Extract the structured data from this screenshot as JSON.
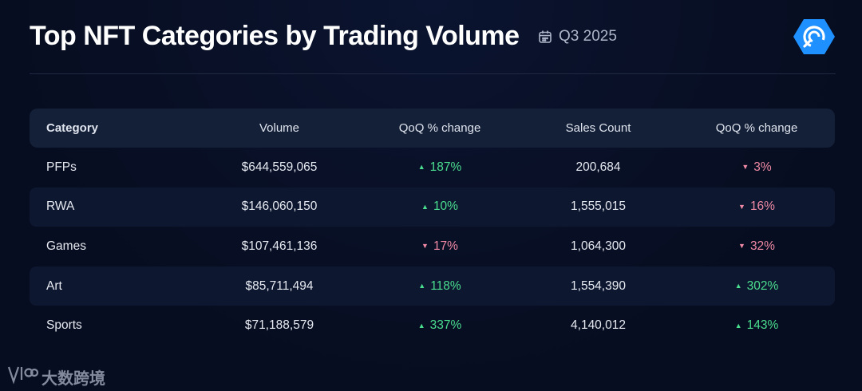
{
  "header": {
    "title": "Top NFT Categories by Trading Volume",
    "period": "Q3 2025"
  },
  "watermark": {
    "text": "大数跨境"
  },
  "colors": {
    "up": "#4ade8f",
    "down": "#f08aa4",
    "logo": "#1e90ff"
  },
  "chart_data": {
    "type": "table",
    "title": "Top NFT Categories by Trading Volume",
    "period": "Q3 2025",
    "columns": [
      "Category",
      "Volume",
      "QoQ % change",
      "Sales Count",
      "QoQ % change"
    ],
    "rows": [
      {
        "category": "PFPs",
        "volume": "$644,559,065",
        "volume_qoq": "187%",
        "volume_dir": "up",
        "sales": "200,684",
        "sales_qoq": "3%",
        "sales_dir": "down"
      },
      {
        "category": "RWA",
        "volume": "$146,060,150",
        "volume_qoq": "10%",
        "volume_dir": "up",
        "sales": "1,555,015",
        "sales_qoq": "16%",
        "sales_dir": "down"
      },
      {
        "category": "Games",
        "volume": "$107,461,136",
        "volume_qoq": "17%",
        "volume_dir": "down",
        "sales": "1,064,300",
        "sales_qoq": "32%",
        "sales_dir": "down"
      },
      {
        "category": "Art",
        "volume": "$85,711,494",
        "volume_qoq": "118%",
        "volume_dir": "up",
        "sales": "1,554,390",
        "sales_qoq": "302%",
        "sales_dir": "up"
      },
      {
        "category": "Sports",
        "volume": "$71,188,579",
        "volume_qoq": "337%",
        "volume_dir": "up",
        "sales": "4,140,012",
        "sales_qoq": "143%",
        "sales_dir": "up"
      }
    ]
  }
}
